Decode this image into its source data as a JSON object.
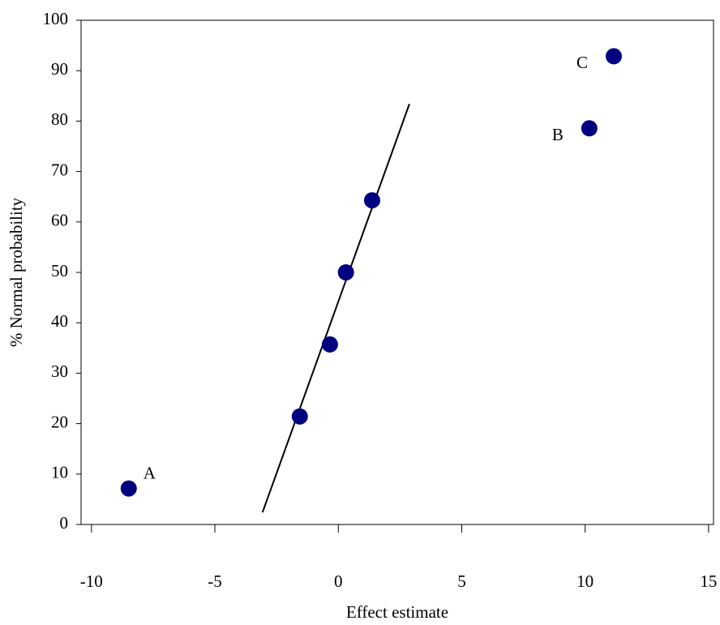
{
  "chart_data": {
    "type": "scatter",
    "x_label": "Effect estimate",
    "y_label": "% Normal probability",
    "series": [
      {
        "color": "#000080",
        "x": [
          -8.49,
          -1.56,
          -0.34,
          0.31,
          1.37,
          10.17,
          11.16
        ],
        "values": [
          7.14,
          21.43,
          35.71,
          50,
          64.29,
          78.57,
          92.86
        ]
      }
    ],
    "fit_line": {
      "color": "#000000",
      "x": [
        -3.07,
        2.88
      ],
      "y": [
        2.4,
        83.4
      ]
    },
    "annotations": [
      {
        "text": "A",
        "point": 0,
        "position": "upper-right"
      },
      {
        "text": "B",
        "point": 5,
        "position": "left"
      },
      {
        "text": "C",
        "point": 6,
        "position": "left"
      }
    ],
    "xlim": [
      -10.42,
      15.2
    ],
    "xticks": [
      -10,
      -5,
      0,
      5,
      10,
      15
    ],
    "ylim": [
      0,
      100
    ],
    "yticks": [
      0,
      10,
      20,
      30,
      40,
      50,
      60,
      70,
      80,
      90,
      100
    ],
    "grid": false
  }
}
